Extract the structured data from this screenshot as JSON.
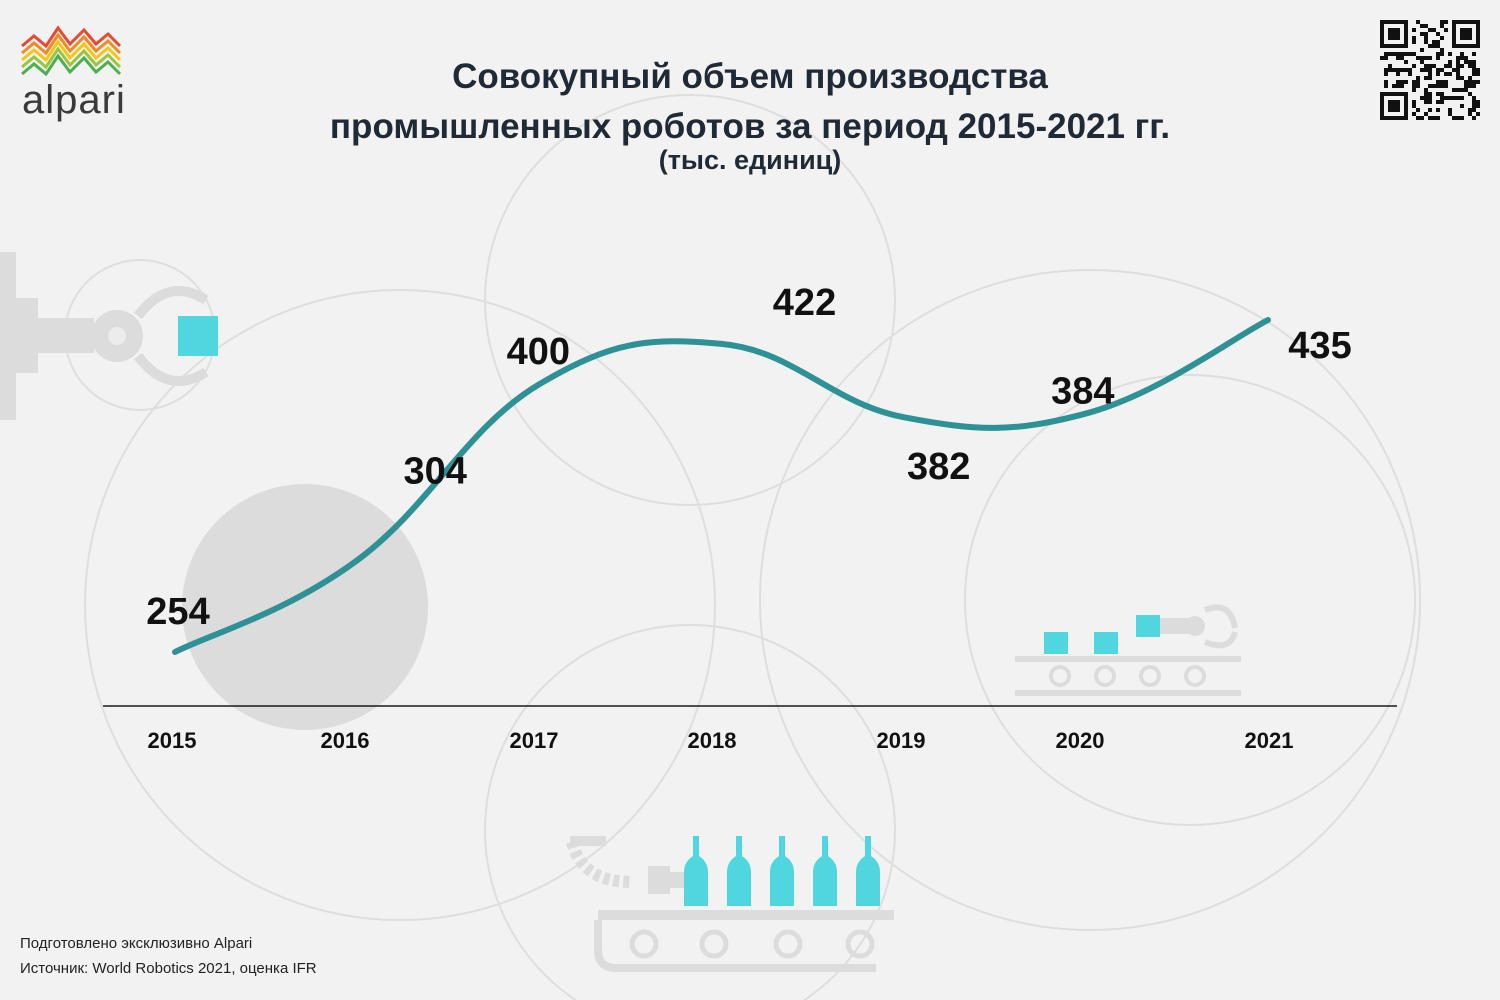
{
  "brand": {
    "name": "alpari",
    "colors": [
      "#e84a2f",
      "#f08a24",
      "#f5c518",
      "#9bc53d",
      "#4caf50"
    ]
  },
  "title": {
    "line1": "Совокупный объем производства",
    "line2": "промышленных роботов за период 2015-2021 гг.",
    "subtitle": "(тыс. единиц)"
  },
  "footer": {
    "prepared": "Подготовлено эксклюзивно Alpari",
    "source": "Источник: World Robotics 2021, оценка IFR"
  },
  "icons": [
    "robot-arm-icon",
    "conveyor-icon",
    "bottle-conveyor-icon",
    "qr-code-icon"
  ],
  "colors": {
    "line": "#2e9196",
    "accent": "#4fd6df",
    "text": "#111111",
    "axis": "#1a1a1a",
    "decor": "#cfcfcf"
  },
  "chart_data": {
    "type": "line",
    "title": "Совокупный объем производства промышленных роботов за период 2015-2021 гг.",
    "subtitle": "(тыс. единиц)",
    "x": [
      "2015",
      "2016",
      "2017",
      "2018",
      "2019",
      "2020",
      "2021"
    ],
    "series": [
      {
        "name": "",
        "values": [
          254,
          304,
          400,
          422,
          382,
          384,
          435
        ]
      }
    ],
    "xlabel": "",
    "ylabel": "",
    "grid": false,
    "legend": "none",
    "data_labels": true
  }
}
